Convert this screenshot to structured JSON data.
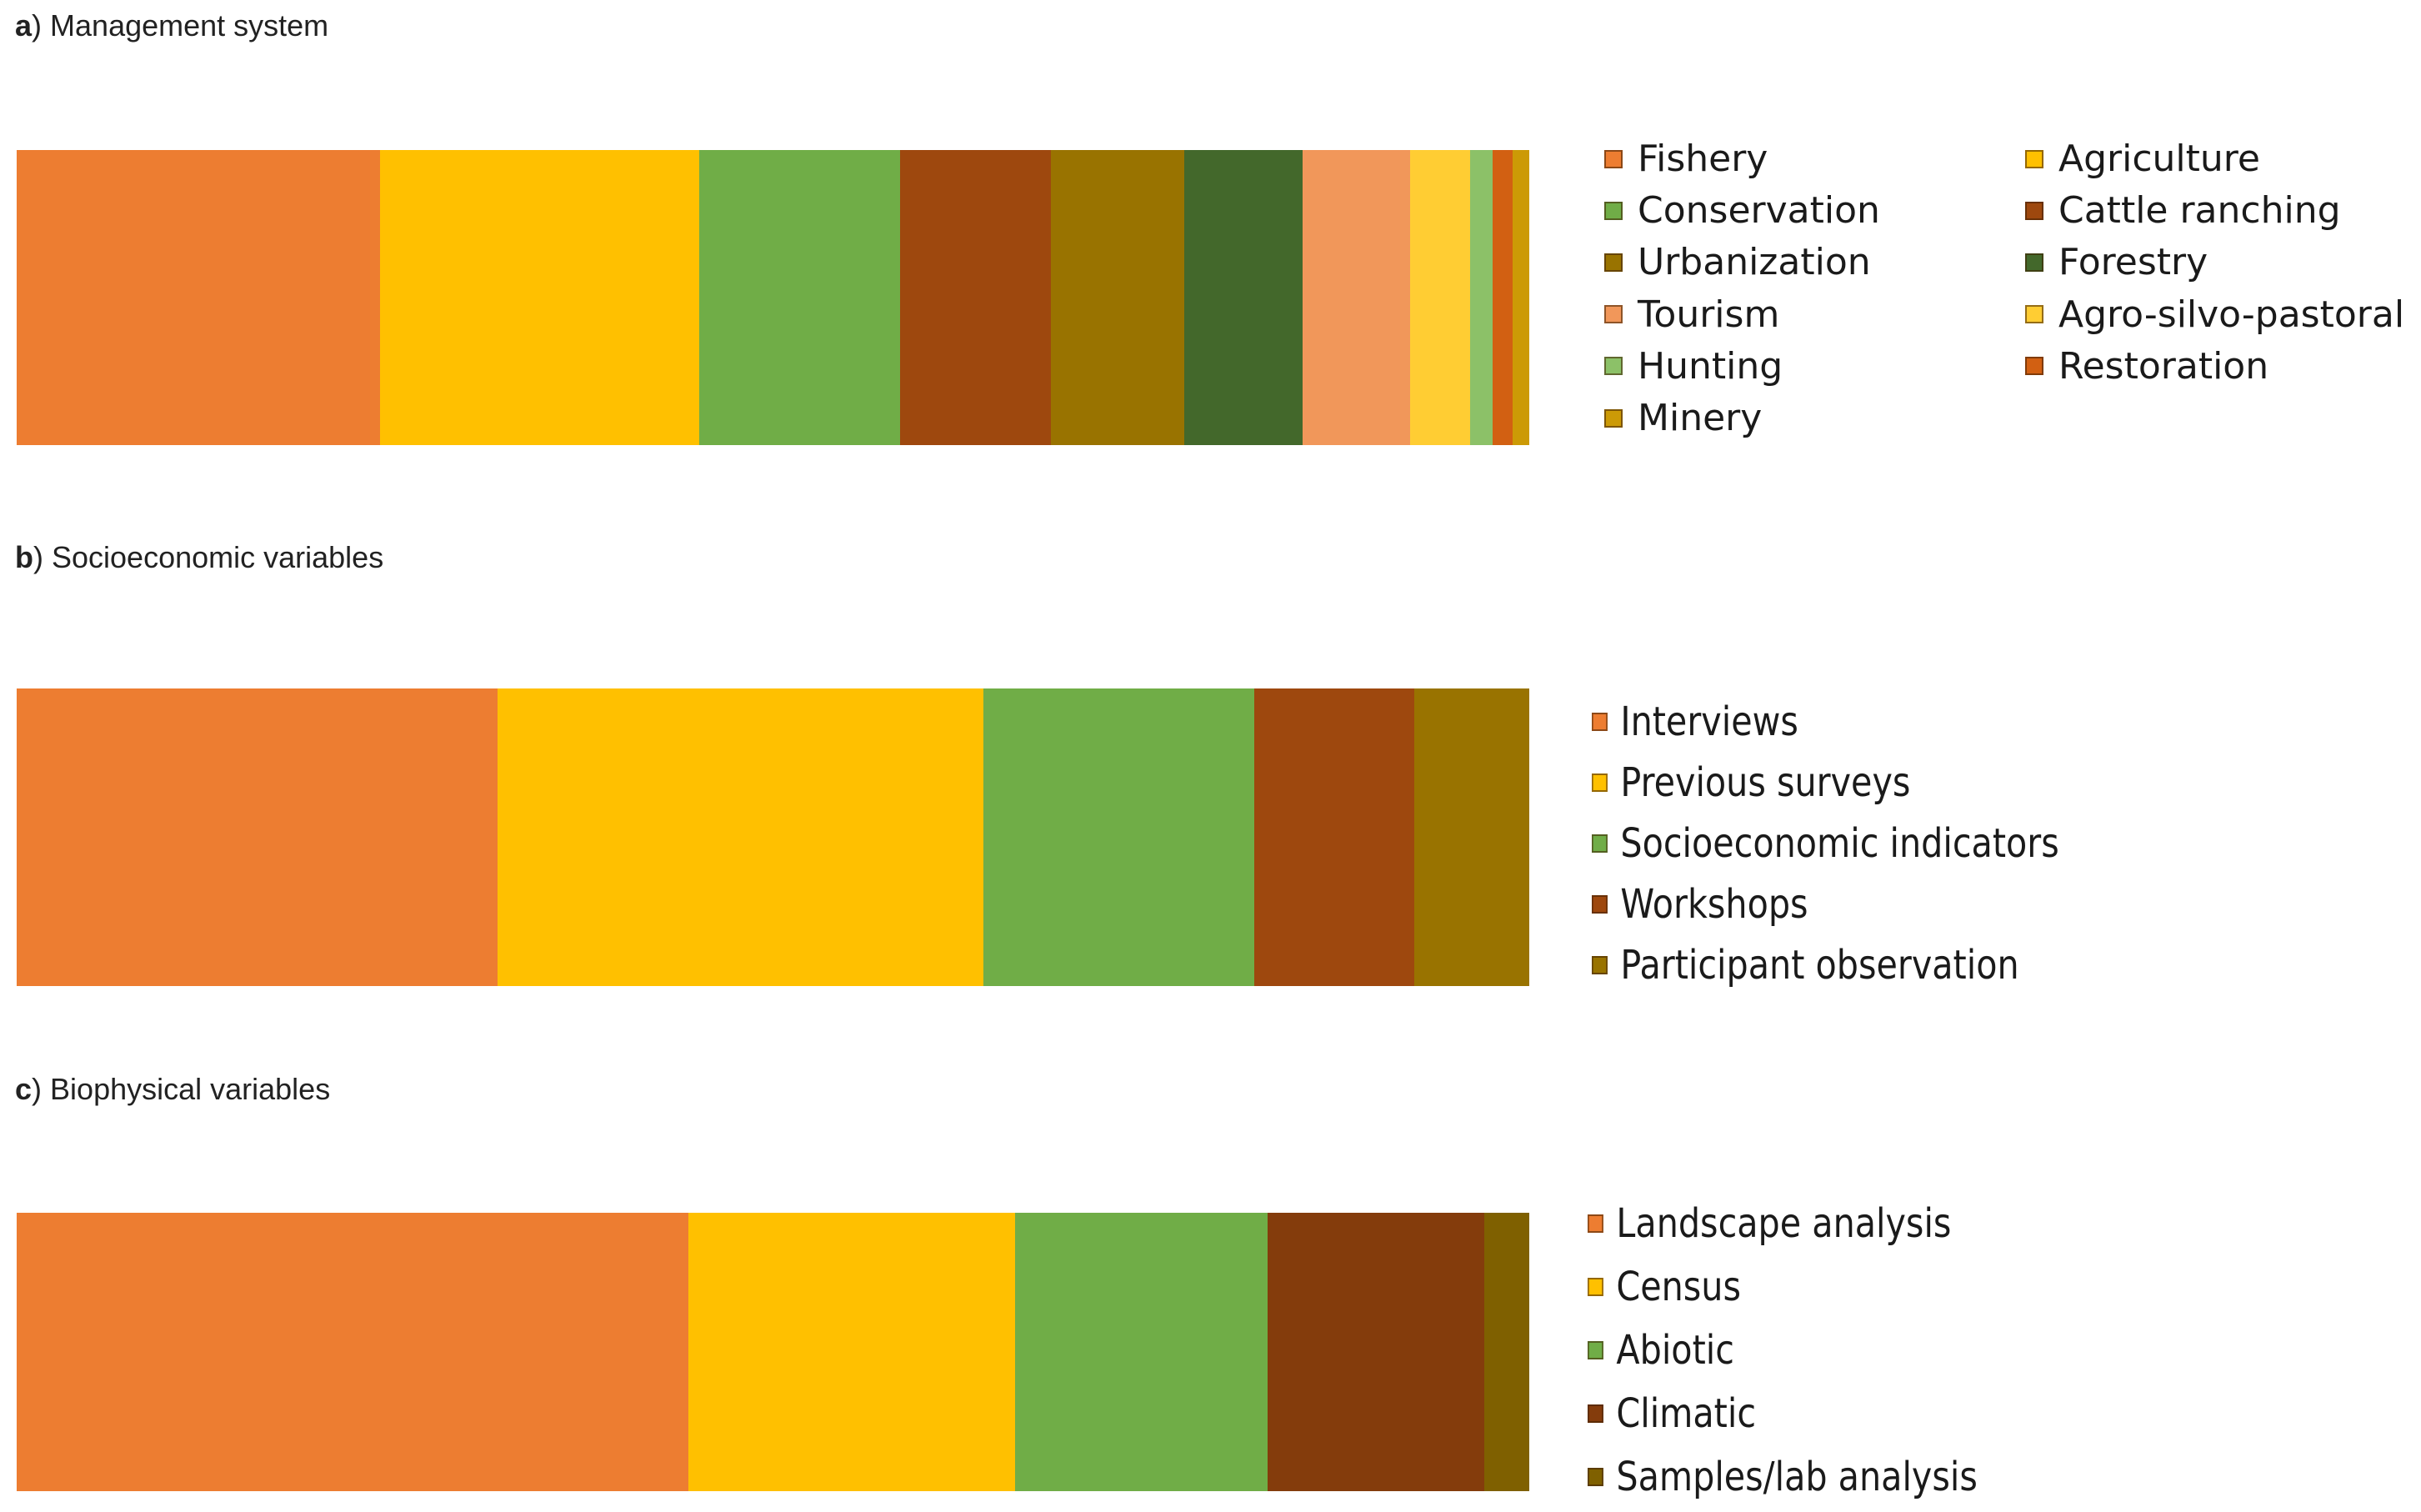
{
  "chart_data": [
    {
      "type": "bar",
      "orientation": "horizontal-stacked",
      "panel_letter": "a",
      "title": "Management system",
      "series": [
        {
          "name": "Fishery",
          "value": 24.0,
          "color": "#ed7d31"
        },
        {
          "name": "Agriculture",
          "value": 21.1,
          "color": "#ffc000"
        },
        {
          "name": "Conservation",
          "value": 13.3,
          "color": "#70ad47"
        },
        {
          "name": "Cattle ranching",
          "value": 10.0,
          "color": "#9e480e"
        },
        {
          "name": "Urbanization",
          "value": 8.8,
          "color": "#997300"
        },
        {
          "name": "Forestry",
          "value": 7.8,
          "color": "#43682b"
        },
        {
          "name": "Tourism",
          "value": 7.1,
          "color": "#f1975a"
        },
        {
          "name": "Agro-silvo-pastoral",
          "value": 4.0,
          "color": "#ffcd33"
        },
        {
          "name": "Hunting",
          "value": 1.5,
          "color": "#8cc168"
        },
        {
          "name": "Restoration",
          "value": 1.3,
          "color": "#d26012"
        },
        {
          "name": "Minery",
          "value": 1.1,
          "color": "#cc9a06"
        }
      ],
      "legend_columns": [
        [
          "Fishery",
          "Conservation",
          "Urbanization",
          "Tourism",
          "Hunting",
          "Minery"
        ],
        [
          "Agriculture",
          "Cattle ranching",
          "Forestry",
          "Agro-silvo-pastoral",
          "Restoration"
        ]
      ]
    },
    {
      "type": "bar",
      "orientation": "horizontal-stacked",
      "panel_letter": "b",
      "title": "Socioeconomic variables",
      "series": [
        {
          "name": "Interviews",
          "value": 31.8,
          "color": "#ed7d31"
        },
        {
          "name": "Previous surveys",
          "value": 32.1,
          "color": "#ffc000"
        },
        {
          "name": "Socioeconomic indicators",
          "value": 17.9,
          "color": "#70ad47"
        },
        {
          "name": "Workshops",
          "value": 10.6,
          "color": "#9e480e"
        },
        {
          "name": "Participant observation",
          "value": 7.6,
          "color": "#997300"
        }
      ],
      "legend_columns": [
        [
          "Interviews",
          "Previous surveys",
          "Socioeconomic indicators",
          "Workshops",
          "Participant observation"
        ]
      ]
    },
    {
      "type": "bar",
      "orientation": "horizontal-stacked",
      "panel_letter": "c",
      "title": "Biophysical variables",
      "series": [
        {
          "name": "Landscape analysis",
          "value": 44.4,
          "color": "#ed7d31"
        },
        {
          "name": "Census",
          "value": 21.6,
          "color": "#ffc000"
        },
        {
          "name": "Abiotic",
          "value": 16.7,
          "color": "#70ad47"
        },
        {
          "name": "Climatic",
          "value": 14.3,
          "color": "#843c0c"
        },
        {
          "name": "Samples/lab analysis",
          "value": 3.0,
          "color": "#7f6000"
        }
      ],
      "legend_columns": [
        [
          "Landscape analysis",
          "Census",
          "Abiotic",
          "Climatic",
          "Samples/lab analysis"
        ]
      ]
    }
  ]
}
